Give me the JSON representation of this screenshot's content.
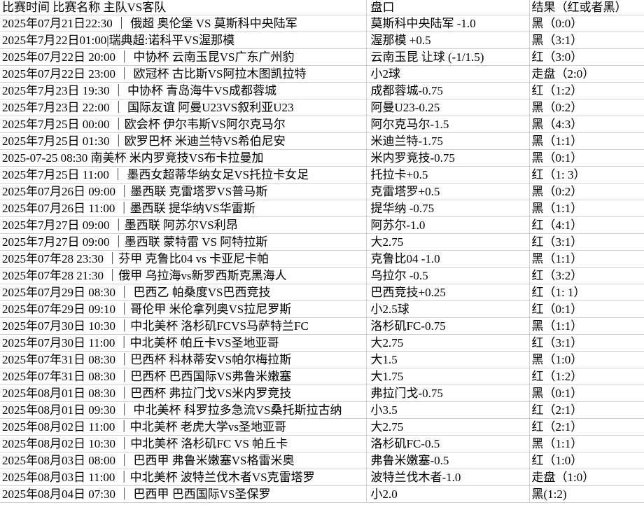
{
  "colors": {
    "background": "#ffffff",
    "text": "#000000",
    "grid_line": "#d2d2d2"
  },
  "table": {
    "headers": {
      "match": "比赛时间 比赛名称 主队VS客队",
      "handicap": "盘口",
      "result": "结果（红或者黑）"
    },
    "rows": [
      {
        "match": "2025年07月21日22:30 ｜ 俄超 奥伦堡 VS 莫斯科中央陆军",
        "handicap": "莫斯科中央陆军 -1.0",
        "result": "黑（0:0）"
      },
      {
        "match": "2025年7月22日01:00|瑞典超:诺科平VS渥那模",
        "handicap": "渥那模 +0.5",
        "result": "黑（3:1）"
      },
      {
        "match": "2025年07月22日 20:00 ｜ 中协杯 云南玉昆VS广东广州豹",
        "handicap": "云南玉昆 让球 (-1/1.5)",
        "result": "红（3:0）"
      },
      {
        "match": "2025年07月22日 23:00 ｜ 欧冠杯 古比斯VS阿拉木图凯拉特",
        "handicap": "小2球",
        "result": "走盘（2:0）"
      },
      {
        "match": "2025年7月23日 19:30 ｜ 中协杯 青岛海牛VS成都蓉城",
        "handicap": "成都蓉城-0.75",
        "result": "红（1:2）"
      },
      {
        "match": "2025年7月23日 22:00 ｜ 国际友谊 阿曼U23VS叙利亚U23",
        "handicap": "阿曼U23-0.25",
        "result": "黑（0:2）"
      },
      {
        "match": "2025年7月25日 00:00 ｜欧会杯 伊尔韦斯VS阿尔克马尔",
        "handicap": "阿尔克马尔-1.5",
        "result": "黑（4:3）"
      },
      {
        "match": "2025年7月25日 01:30 ｜欧罗巴杯 米迪兰特VS希伯尼安",
        "handicap": "米迪兰特-1.75",
        "result": "黑（1:1）"
      },
      {
        "match": "2025-07-25 08:30 南美杯 米内罗竞技VS布卡拉曼加",
        "handicap": "米内罗竞技-0.75",
        "result": "黑（0:1）"
      },
      {
        "match": "2025年7月25日 11:00 ｜ 墨西女超蒂华纳女足VS托拉卡女足",
        "handicap": "托拉卡+0.5",
        "result": "红（1: 3）"
      },
      {
        "match": "2025年07月26日 09:00 ｜墨西联 克雷塔罗VS普马斯",
        "handicap": "克雷塔罗+0.5",
        "result": "黑（0:2）"
      },
      {
        "match": "2025年07月26日 11:00 ｜墨西联 提华纳VS华雷斯",
        "handicap": "提华纳 -0.75",
        "result": "黑（1:1）"
      },
      {
        "match": "2025年7月27日 09:00 ｜墨西联 阿苏尔VS利昂",
        "handicap": "阿苏尔-1.0",
        "result": "红（4:1）"
      },
      {
        "match": "2025年7月27日 09:00 ｜墨西联 蒙特雷 VS 阿特拉斯",
        "handicap": "大2.75",
        "result": "红（3:1）"
      },
      {
        "match": "2025年07年28 23:30 ｜芬甲 克鲁比04 vs 卡亚尼卡帕",
        "handicap": "克鲁比04 -1.0",
        "result": "黑（1:1）"
      },
      {
        "match": "2025年07年28 21:30 ｜俄甲 乌拉海vs新罗西斯克黑海人",
        "handicap": "乌拉尔 -0.5",
        "result": "红（3:2）"
      },
      {
        "match": "2025年07月29日 08:30 ｜ 巴西乙 帕桑度VS巴西竞技",
        "handicap": "巴西竞技+0.25",
        "result": "红（1: 1）"
      },
      {
        "match": "2025年07年29日 09:10 ｜哥伦甲 米伦拿列奥VS拉尼罗斯",
        "handicap": "小2.5球",
        "result": "红（0:1）"
      },
      {
        "match": "2025年07月30日 10:30 ｜中北美杯 洛杉矶FCVS马萨特兰FC",
        "handicap": "洛杉矶FC-0.75",
        "result": "黑（1:1）"
      },
      {
        "match": "2025年07月30日 11:00 ｜中北美杯 帕丘卡VS圣地亚哥",
        "handicap": "大2.75",
        "result": "红（3:1）"
      },
      {
        "match": "2025年07年31日 08:30 ｜巴西杯 科林蒂安VS帕尔梅拉斯",
        "handicap": "大1.5",
        "result": "黑（1:0）"
      },
      {
        "match": "2025年07年31日 08:30 ｜巴西杯 巴西国际VS弗鲁米嫩塞",
        "handicap": "大1.75",
        "result": "红（1:2）"
      },
      {
        "match": "2025年08月01日 08:30 ｜巴西杯 弗拉门戈VS米内罗竞技",
        "handicap": "弗拉门戈-0.75",
        "result": "黑（0:1）"
      },
      {
        "match": "2025年08月01日 09:30 ｜ 中北美杯 科罗拉多急流VS桑托斯拉古纳",
        "handicap": "小3.5",
        "result": "红（2:1）"
      },
      {
        "match": "2025年08月02日 11:00 ｜中北美杯 老虎大学vs圣地亚哥",
        "handicap": "大2.75",
        "result": "红（2:1）"
      },
      {
        "match": "2025年08月02日 10:30 ｜中北美杯 洛杉矶FC VS 帕丘卡",
        "handicap": "洛杉矶FC-0.5",
        "result": "黑（1:1）"
      },
      {
        "match": "2025年08月03日 08:00 ｜ 巴西甲 弗鲁米嫩塞VS格雷米奥",
        "handicap": "弗鲁米嫩塞-0.5",
        "result": "红（1:0）"
      },
      {
        "match": "2025年08月03日 11:00 ｜中北美杯 波特兰伐木者VS克雷塔罗",
        "handicap": "波特兰伐木者-1.0",
        "result": "走盘（1:0）"
      },
      {
        "match": "2025年08月04日 07:30 ｜ 巴西甲 巴西国际VS圣保罗",
        "handicap": "小2.0",
        "result": "黑(1:2)"
      }
    ]
  }
}
